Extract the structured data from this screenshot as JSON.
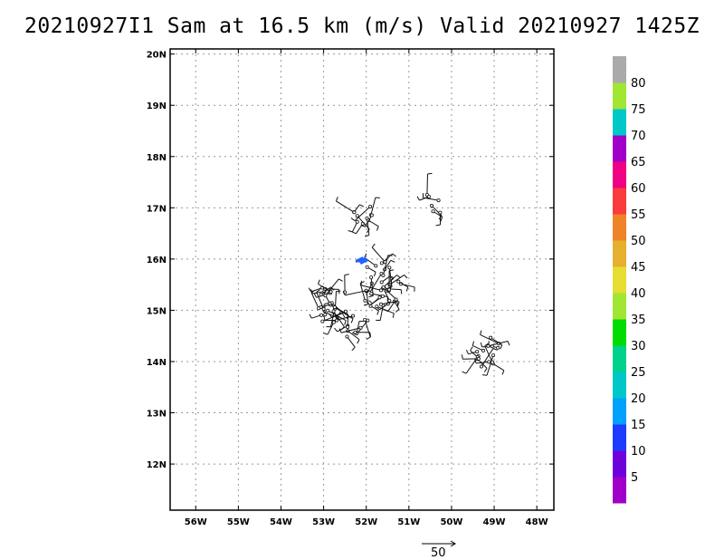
{
  "title": "20210927I1 Sam at 16.5 km (m/s) Valid 20210927 1425Z",
  "map": {
    "lon_range": [
      -56.6,
      -47.6
    ],
    "lat_range": [
      11.1,
      20.1
    ],
    "lon_ticks": [
      "56W",
      "55W",
      "54W",
      "53W",
      "52W",
      "51W",
      "50W",
      "49W",
      "48W"
    ],
    "lat_ticks": [
      "12N",
      "13N",
      "14N",
      "15N",
      "16N",
      "17N",
      "18N",
      "19N",
      "20N"
    ],
    "gridlines": true
  },
  "colorbar": {
    "labels": [
      "5",
      "10",
      "15",
      "20",
      "25",
      "30",
      "35",
      "40",
      "45",
      "50",
      "55",
      "60",
      "65",
      "70",
      "75",
      "80"
    ],
    "colors": [
      "#a000c8",
      "#6e00dc",
      "#1e3cff",
      "#00a0ff",
      "#00c8c8",
      "#00d28c",
      "#00dc00",
      "#a0e632",
      "#e6dc32",
      "#e6af2d",
      "#f08228",
      "#fa3c3c",
      "#f00082",
      "#a000c8",
      "#00c8c8",
      "#a0e632",
      "#aaaaaa"
    ]
  },
  "reference_vector": {
    "label": "50"
  }
}
